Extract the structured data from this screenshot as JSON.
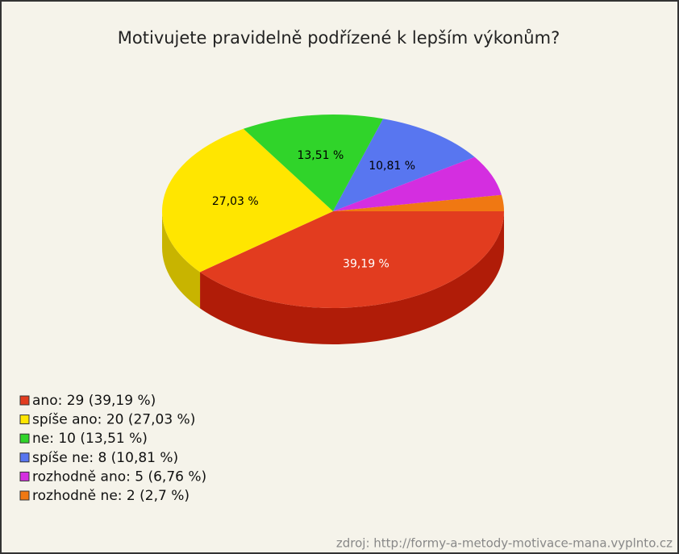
{
  "chart_data": {
    "type": "pie3d",
    "title": "Motivujete pravidelně podřízené k lepším výkonům?",
    "categories": [
      "ano: 29 (39,19 %)",
      "spíše ano: 20 (27,03 %)",
      "ne: 10 (13,51 %)",
      "spíše ne: 8 (10,81 %)",
      "rozhodně ano: 5 (6,76 %)",
      "rozhodně ne: 2 (2,7 %)"
    ],
    "values": [
      39.19,
      27.03,
      13.51,
      10.81,
      6.76,
      2.7
    ],
    "value_labels": [
      "39,19 %",
      "27,03 %",
      "13,51 %",
      "10,81 %",
      null,
      null
    ],
    "value_label_colors": [
      "#ffffff",
      "#000000",
      "#000000",
      "#000000",
      "#000000",
      "#000000"
    ],
    "colors": [
      "#e23c1f",
      "#ffe600",
      "#30d42a",
      "#5876f0",
      "#d42ee0",
      "#f07812"
    ],
    "side_colors": [
      "#b01c08",
      "#c8b400",
      "#1c9a18",
      "#3550c0",
      "#9a1aa6",
      "#b85206"
    ],
    "source": "zdroj: http://formy-a-metody-motivace-mana.vyplnto.cz"
  }
}
